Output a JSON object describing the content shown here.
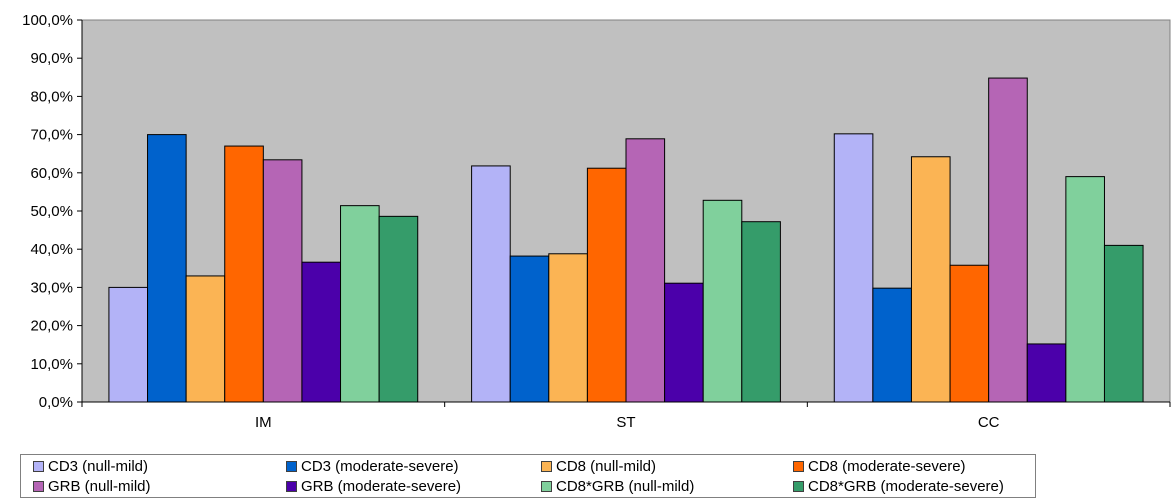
{
  "chart_data": {
    "type": "bar",
    "categories": [
      "IM",
      "ST",
      "CC"
    ],
    "ylim": [
      0,
      100
    ],
    "yticks": [
      "0,0%",
      "10,0%",
      "20,0%",
      "30,0%",
      "40,0%",
      "50,0%",
      "60,0%",
      "70,0%",
      "80,0%",
      "90,0%",
      "100,0%"
    ],
    "grid": false,
    "plot_background": "#c0c0c0",
    "legend_position": "bottom",
    "series": [
      {
        "name": "CD3 (null-mild)",
        "color": "#b3b3f7",
        "values": [
          30.0,
          61.8,
          70.2
        ]
      },
      {
        "name": "CD3 (moderate-severe)",
        "color": "#0062cc",
        "values": [
          70.0,
          38.2,
          29.8
        ]
      },
      {
        "name": "CD8 (null-mild)",
        "color": "#fbb454",
        "values": [
          33.0,
          38.8,
          64.2
        ]
      },
      {
        "name": "CD8 (moderate-severe)",
        "color": "#ff6600",
        "values": [
          67.0,
          61.2,
          35.8
        ]
      },
      {
        "name": "GRB (null-mild)",
        "color": "#b565b5",
        "values": [
          63.4,
          68.9,
          84.8
        ]
      },
      {
        "name": "GRB (moderate-severe)",
        "color": "#4b00aa",
        "values": [
          36.6,
          31.1,
          15.2
        ]
      },
      {
        "name": "CD8*GRB (null-mild)",
        "color": "#80d09c",
        "values": [
          51.4,
          52.8,
          59.0
        ]
      },
      {
        "name": "CD8*GRB (moderate-severe)",
        "color": "#359c6a",
        "values": [
          48.6,
          47.2,
          41.0
        ]
      }
    ]
  }
}
